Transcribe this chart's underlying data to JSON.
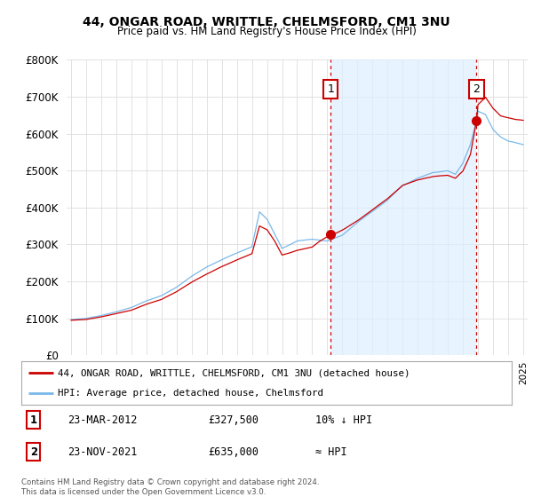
{
  "title1": "44, ONGAR ROAD, WRITTLE, CHELMSFORD, CM1 3NU",
  "title2": "Price paid vs. HM Land Registry's House Price Index (HPI)",
  "legend_line1": "44, ONGAR ROAD, WRITTLE, CHELMSFORD, CM1 3NU (detached house)",
  "legend_line2": "HPI: Average price, detached house, Chelmsford",
  "annotation1_label": "1",
  "annotation1_date": "23-MAR-2012",
  "annotation1_price": "£327,500",
  "annotation1_note": "10% ↓ HPI",
  "annotation2_label": "2",
  "annotation2_date": "23-NOV-2021",
  "annotation2_price": "£635,000",
  "annotation2_note": "≈ HPI",
  "footer": "Contains HM Land Registry data © Crown copyright and database right 2024.\nThis data is licensed under the Open Government Licence v3.0.",
  "hpi_color": "#7ab8e8",
  "price_color": "#cc0000",
  "annotation_box_color": "#cc0000",
  "vline_color": "#cc0000",
  "background_plot": "#ffffff",
  "background_fig": "#ffffff",
  "shade_color": "#ddeeff",
  "ylim": [
    0,
    800000
  ],
  "yticks": [
    0,
    100000,
    200000,
    300000,
    400000,
    500000,
    600000,
    700000,
    800000
  ],
  "sale1_year": 2012.22,
  "sale1_price": 327500,
  "sale2_year": 2021.9,
  "sale2_price": 635000,
  "xlim_left": 1994.7,
  "xlim_right": 2025.3
}
